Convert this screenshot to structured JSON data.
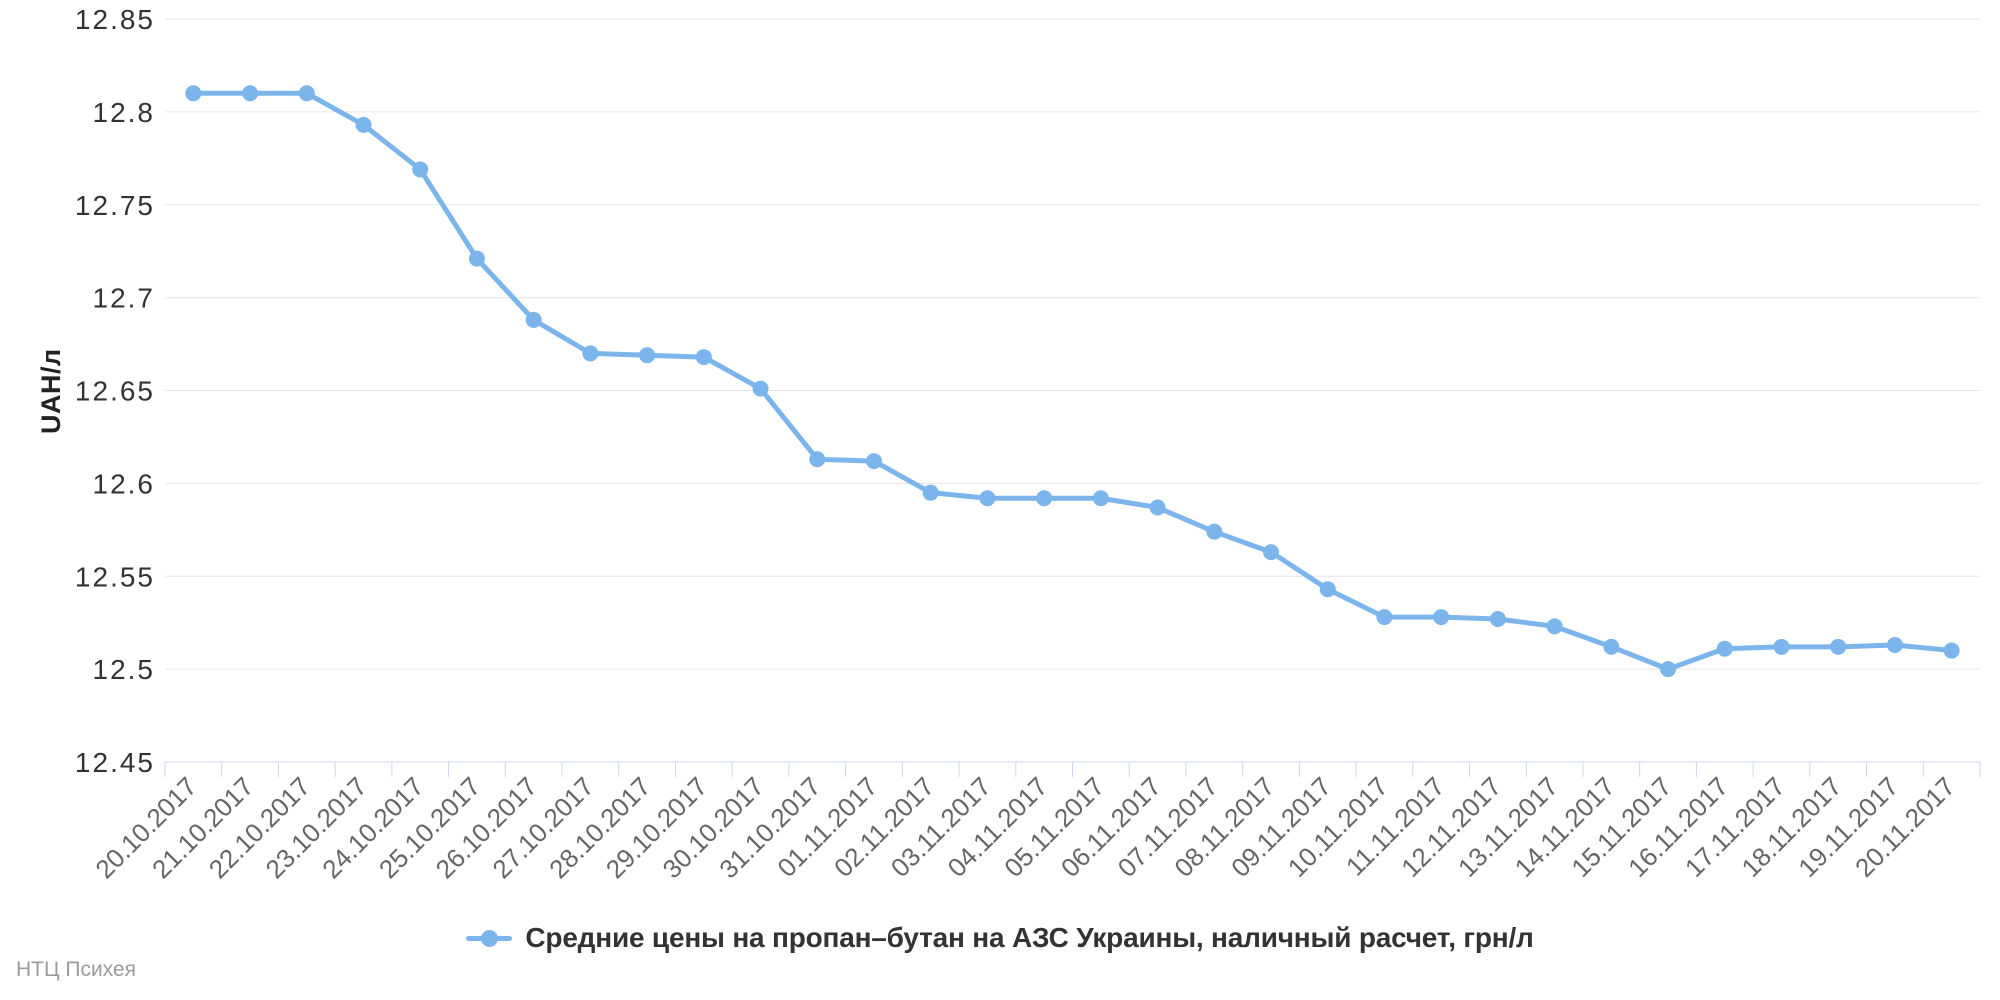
{
  "chart_data": {
    "type": "line",
    "title": "",
    "xlabel": "",
    "ylabel": "UAH/л",
    "ylim": [
      12.45,
      12.85
    ],
    "grid": true,
    "legend_position": "bottom-center",
    "y_tick_labels": [
      "12.45",
      "12.5",
      "12.55",
      "12.6",
      "12.65",
      "12.7",
      "12.75",
      "12.8",
      "12.85"
    ],
    "categories": [
      "20.10.2017",
      "21.10.2017",
      "22.10.2017",
      "23.10.2017",
      "24.10.2017",
      "25.10.2017",
      "26.10.2017",
      "27.10.2017",
      "28.10.2017",
      "29.10.2017",
      "30.10.2017",
      "31.10.2017",
      "01.11.2017",
      "02.11.2017",
      "03.11.2017",
      "04.11.2017",
      "05.11.2017",
      "06.11.2017",
      "07.11.2017",
      "08.11.2017",
      "09.11.2017",
      "10.11.2017",
      "11.11.2017",
      "12.11.2017",
      "13.11.2017",
      "14.11.2017",
      "15.11.2017",
      "16.11.2017",
      "17.11.2017",
      "18.11.2017",
      "19.11.2017",
      "20.11.2017"
    ],
    "series": [
      {
        "name": "Средние цены на пропан–бутан на АЗС Украины, наличный расчет, грн/л",
        "values": [
          12.81,
          12.81,
          12.81,
          12.793,
          12.769,
          12.721,
          12.688,
          12.67,
          12.669,
          12.668,
          12.651,
          12.613,
          12.612,
          12.595,
          12.592,
          12.592,
          12.592,
          12.587,
          12.574,
          12.563,
          12.543,
          12.528,
          12.528,
          12.527,
          12.523,
          12.512,
          12.5,
          12.511,
          12.512,
          12.512,
          12.513,
          12.51
        ]
      }
    ],
    "colors": {
      "series": "#7cb5ec",
      "grid": "#e6e6e6",
      "axis": "#ccd6eb",
      "y_label": "#333333",
      "x_label": "#666666",
      "legend_text": "#333333",
      "credits": "#9b9b9b"
    }
  },
  "credits": {
    "text": "НТЦ Психея"
  }
}
